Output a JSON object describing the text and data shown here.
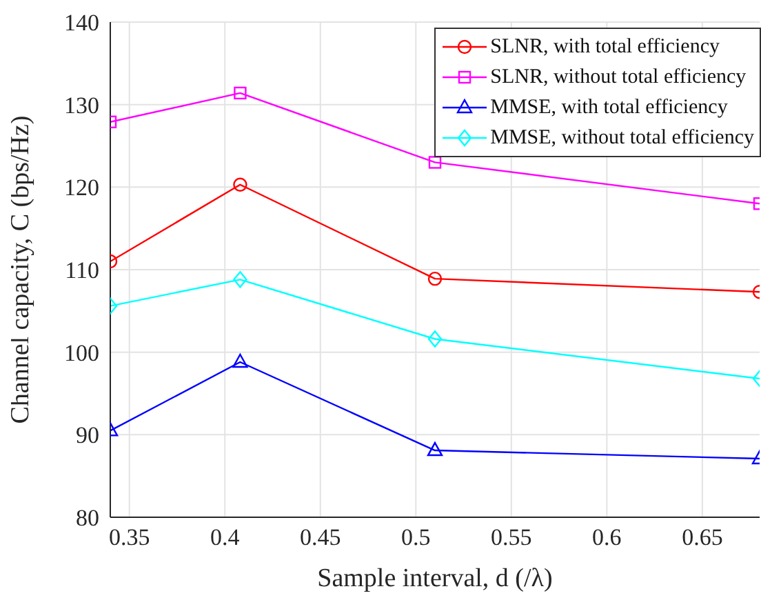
{
  "chart_data": {
    "type": "line",
    "xlabel": "Sample interval, d (/λ)",
    "ylabel": "Channel capacity, C (bps/Hz)",
    "x": [
      0.34,
      0.408,
      0.51,
      0.68
    ],
    "series": [
      {
        "name": "SLNR, with total efficiency",
        "color": "#ff0000",
        "marker": "circle",
        "values": [
          111.0,
          120.3,
          108.9,
          107.3
        ]
      },
      {
        "name": "SLNR, without total efficiency",
        "color": "#ff00ff",
        "marker": "square",
        "values": [
          127.9,
          131.4,
          123.0,
          118.0
        ]
      },
      {
        "name": "MMSE, with total efficiency",
        "color": "#0000ff",
        "marker": "triangle",
        "values": [
          90.5,
          98.8,
          88.1,
          87.1
        ]
      },
      {
        "name": "MMSE, without total efficiency",
        "color": "#00ffff",
        "marker": "diamond",
        "values": [
          105.6,
          108.8,
          101.6,
          96.8
        ]
      }
    ],
    "xlim": [
      0.34,
      0.68
    ],
    "xticks": [
      0.35,
      0.4,
      0.45,
      0.5,
      0.55,
      0.6,
      0.65
    ],
    "ylim": [
      80,
      140
    ],
    "yticks": [
      80,
      90,
      100,
      110,
      120,
      130,
      140
    ],
    "grid": true,
    "legend": "top right",
    "line_style": "solid"
  }
}
